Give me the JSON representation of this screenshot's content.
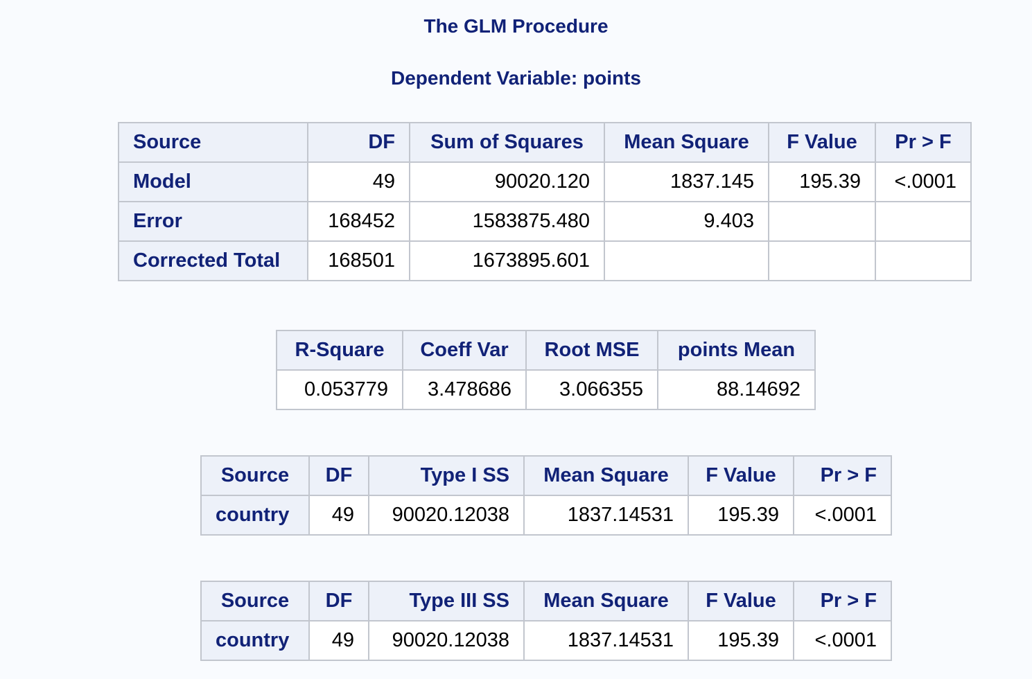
{
  "title": "The GLM Procedure",
  "subtitle": "Dependent Variable: points",
  "anova": {
    "headers": [
      "Source",
      "DF",
      "Sum of Squares",
      "Mean Square",
      "F Value",
      "Pr > F"
    ],
    "rows": [
      [
        "Model",
        "49",
        "90020.120",
        "1837.145",
        "195.39",
        "<.0001"
      ],
      [
        "Error",
        "168452",
        "1583875.480",
        "9.403",
        "",
        ""
      ],
      [
        "Corrected Total",
        "168501",
        "1673895.601",
        "",
        "",
        ""
      ]
    ]
  },
  "fit": {
    "headers": [
      "R-Square",
      "Coeff Var",
      "Root MSE",
      "points Mean"
    ],
    "values": [
      "0.053779",
      "3.478686",
      "3.066355",
      "88.14692"
    ]
  },
  "type1": {
    "headers": [
      "Source",
      "DF",
      "Type I SS",
      "Mean Square",
      "F Value",
      "Pr > F"
    ],
    "rows": [
      [
        "country",
        "49",
        "90020.12038",
        "1837.14531",
        "195.39",
        "<.0001"
      ]
    ]
  },
  "type3": {
    "headers": [
      "Source",
      "DF",
      "Type III SS",
      "Mean Square",
      "F Value",
      "Pr > F"
    ],
    "rows": [
      [
        "country",
        "49",
        "90020.12038",
        "1837.14531",
        "195.39",
        "<.0001"
      ]
    ]
  }
}
